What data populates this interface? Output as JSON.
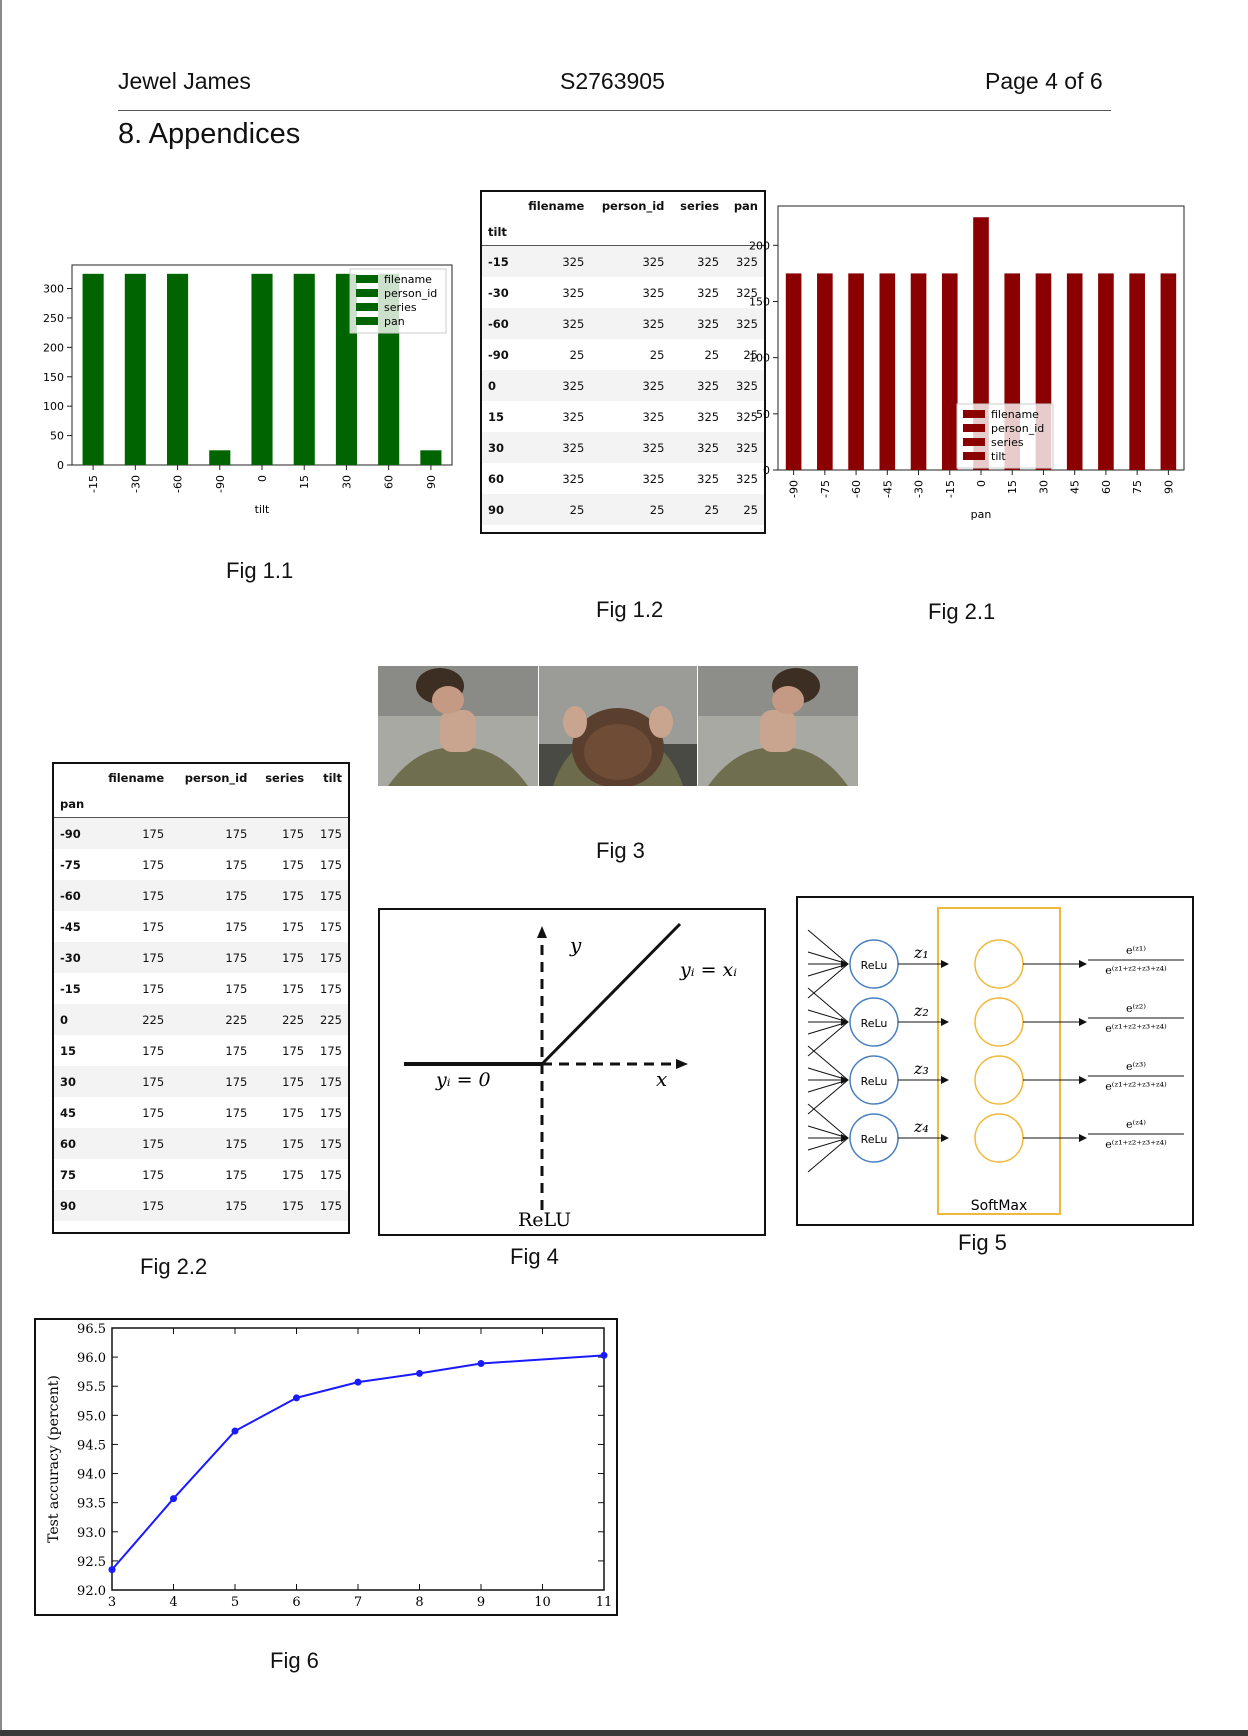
{
  "header": {
    "author": "Jewel James",
    "student_id": "S2763905",
    "page": "Page 4 of 6"
  },
  "section_title": "8. Appendices",
  "captions": {
    "fig1_1": "Fig 1.1",
    "fig1_2": "Fig 1.2",
    "fig2_1": "Fig 2.1",
    "fig2_2": "Fig 2.2",
    "fig3": "Fig 3",
    "fig4": "Fig 4",
    "fig5": "Fig 5",
    "fig6": "Fig 6"
  },
  "colors": {
    "green": "#006400",
    "darkred": "#8b0000",
    "blue": "#1a1aff",
    "neuron_blue": "#4a7fbf",
    "neuron_orange": "#f0b93a"
  },
  "chart_data": [
    {
      "id": "fig1_1",
      "type": "bar",
      "categories": [
        "-15",
        "-30",
        "-60",
        "-90",
        "0",
        "15",
        "30",
        "60",
        "90"
      ],
      "values": [
        325,
        325,
        325,
        25,
        325,
        325,
        325,
        325,
        25
      ],
      "xlabel": "tilt",
      "ylabel": "",
      "yticks": [
        0,
        50,
        100,
        150,
        200,
        250,
        300
      ],
      "ylim": [
        0,
        340
      ],
      "legend": [
        "filename",
        "person_id",
        "series",
        "pan"
      ],
      "legend_position": "top-right",
      "color": "#006400"
    },
    {
      "id": "fig2_1",
      "type": "bar",
      "categories": [
        "-90",
        "-75",
        "-60",
        "-45",
        "-30",
        "-15",
        "0",
        "15",
        "30",
        "45",
        "60",
        "75",
        "90"
      ],
      "values": [
        175,
        175,
        175,
        175,
        175,
        175,
        225,
        175,
        175,
        175,
        175,
        175,
        175
      ],
      "xlabel": "pan",
      "ylabel": "",
      "yticks": [
        0,
        50,
        100,
        150,
        200
      ],
      "ylim": [
        0,
        235
      ],
      "legend": [
        "filename",
        "person_id",
        "series",
        "tilt"
      ],
      "legend_position": "lower-center",
      "color": "#8b0000"
    },
    {
      "id": "fig6",
      "type": "line",
      "x": [
        3,
        4,
        5,
        6,
        7,
        8,
        9,
        11
      ],
      "y": [
        92.35,
        93.57,
        94.73,
        95.3,
        95.57,
        95.72,
        95.89,
        96.03
      ],
      "xlabel": "",
      "ylabel": "Test accuracy (percent)",
      "xticks": [
        3,
        4,
        5,
        6,
        7,
        8,
        9,
        10,
        11
      ],
      "xlim": [
        3,
        11
      ],
      "yticks": [
        "92.0",
        "92.5",
        "93.0",
        "93.5",
        "94.0",
        "94.5",
        "95.0",
        "95.5",
        "96.0",
        "96.5"
      ],
      "ylim": [
        92.0,
        96.5
      ],
      "color": "#1a1aff"
    },
    {
      "id": "fig1_2",
      "type": "table",
      "columns": [
        "filename",
        "person_id",
        "series",
        "pan"
      ],
      "index_name": "tilt",
      "rows": [
        [
          "-15",
          "325",
          "325",
          "325",
          "325"
        ],
        [
          "-30",
          "325",
          "325",
          "325",
          "325"
        ],
        [
          "-60",
          "325",
          "325",
          "325",
          "325"
        ],
        [
          "-90",
          "25",
          "25",
          "25",
          "25"
        ],
        [
          "0",
          "325",
          "325",
          "325",
          "325"
        ],
        [
          "15",
          "325",
          "325",
          "325",
          "325"
        ],
        [
          "30",
          "325",
          "325",
          "325",
          "325"
        ],
        [
          "60",
          "325",
          "325",
          "325",
          "325"
        ],
        [
          "90",
          "25",
          "25",
          "25",
          "25"
        ]
      ]
    },
    {
      "id": "fig2_2",
      "type": "table",
      "columns": [
        "filename",
        "person_id",
        "series",
        "tilt"
      ],
      "index_name": "pan",
      "rows": [
        [
          "-90",
          "175",
          "175",
          "175",
          "175"
        ],
        [
          "-75",
          "175",
          "175",
          "175",
          "175"
        ],
        [
          "-60",
          "175",
          "175",
          "175",
          "175"
        ],
        [
          "-45",
          "175",
          "175",
          "175",
          "175"
        ],
        [
          "-30",
          "175",
          "175",
          "175",
          "175"
        ],
        [
          "-15",
          "175",
          "175",
          "175",
          "175"
        ],
        [
          "0",
          "225",
          "225",
          "225",
          "225"
        ],
        [
          "15",
          "175",
          "175",
          "175",
          "175"
        ],
        [
          "30",
          "175",
          "175",
          "175",
          "175"
        ],
        [
          "45",
          "175",
          "175",
          "175",
          "175"
        ],
        [
          "60",
          "175",
          "175",
          "175",
          "175"
        ],
        [
          "75",
          "175",
          "175",
          "175",
          "175"
        ],
        [
          "90",
          "175",
          "175",
          "175",
          "175"
        ]
      ]
    }
  ],
  "fig4": {
    "y_axis": "y",
    "x_axis": "x",
    "eq_right": "yᵢ = xᵢ",
    "eq_left": "yᵢ = 0",
    "label": "ReLU"
  },
  "fig5": {
    "neurons": [
      "ReLu",
      "ReLu",
      "ReLu",
      "ReLu"
    ],
    "z_labels": [
      "z₁",
      "z₂",
      "z₃",
      "z₄"
    ],
    "numerators": [
      "e⁽ᶻ¹⁾",
      "e⁽ᶻ²⁾",
      "e⁽ᶻ³⁾",
      "e⁽ᶻ⁴⁾"
    ],
    "denominator": "e⁽ᶻ¹⁺ᶻ²⁺ᶻ³⁺ᶻ⁴⁾",
    "softmax_label": "SoftMax"
  },
  "fig3": {
    "photos": [
      "head-tilt-up-left-photo",
      "head-tilt-down-photo",
      "head-tilt-up-right-photo"
    ]
  }
}
